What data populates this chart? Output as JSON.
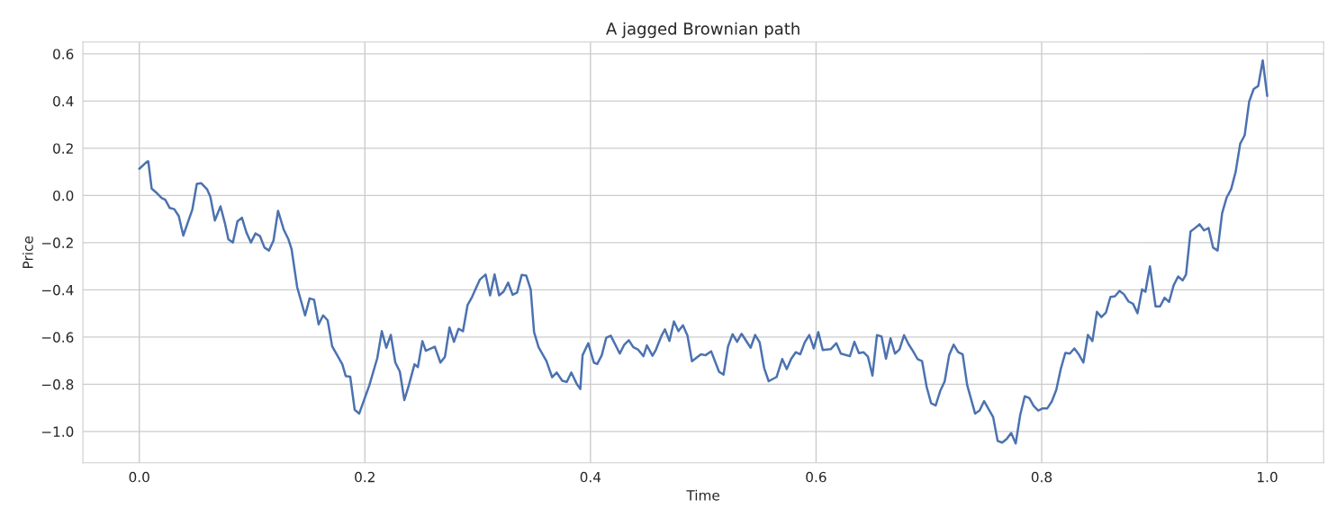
{
  "chart_data": {
    "type": "line",
    "title": "A jagged Brownian path",
    "xlabel": "Time",
    "ylabel": "Price",
    "xlim": [
      -0.05,
      1.05
    ],
    "ylim": [
      -1.133,
      0.65
    ],
    "xticks": [
      {
        "value": 0,
        "label": "0.0"
      },
      {
        "value": 0.2,
        "label": "0.2"
      },
      {
        "value": 0.4,
        "label": "0.4"
      },
      {
        "value": 0.6,
        "label": "0.6"
      },
      {
        "value": 0.8,
        "label": "0.8"
      },
      {
        "value": 1,
        "label": "1.0"
      }
    ],
    "yticks": [
      {
        "value": -1,
        "label": "−1.0"
      },
      {
        "value": -0.8,
        "label": "−0.8"
      },
      {
        "value": -0.6,
        "label": "−0.6"
      },
      {
        "value": -0.4,
        "label": "−0.4"
      },
      {
        "value": -0.2,
        "label": "−0.2"
      },
      {
        "value": 0,
        "label": "0.0"
      },
      {
        "value": 0.2,
        "label": "0.2"
      },
      {
        "value": 0.4,
        "label": "0.4"
      },
      {
        "value": 0.6,
        "label": "0.6"
      }
    ],
    "grid": true,
    "marker": "none",
    "line_style": "solid",
    "series": [
      {
        "color": "#4c72b0",
        "x": [
          0,
          0.007,
          0.008,
          0.011,
          0.016,
          0.02,
          0.023,
          0.027,
          0.031,
          0.035,
          0.039,
          0.047,
          0.051,
          0.055,
          0.06,
          0.063,
          0.067,
          0.072,
          0.076,
          0.079,
          0.083,
          0.087,
          0.091,
          0.095,
          0.099,
          0.103,
          0.107,
          0.111,
          0.115,
          0.119,
          0.123,
          0.128,
          0.132,
          0.135,
          0.14,
          0.147,
          0.151,
          0.155,
          0.159,
          0.163,
          0.167,
          0.171,
          0.18,
          0.183,
          0.187,
          0.191,
          0.195,
          0.204,
          0.211,
          0.215,
          0.219,
          0.223,
          0.227,
          0.231,
          0.235,
          0.239,
          0.244,
          0.247,
          0.251,
          0.254,
          0.262,
          0.267,
          0.271,
          0.275,
          0.279,
          0.283,
          0.287,
          0.291,
          0.295,
          0.302,
          0.307,
          0.311,
          0.315,
          0.319,
          0.323,
          0.327,
          0.331,
          0.335,
          0.339,
          0.343,
          0.347,
          0.35,
          0.354,
          0.361,
          0.366,
          0.37,
          0.375,
          0.379,
          0.383,
          0.388,
          0.391,
          0.393,
          0.398,
          0.403,
          0.406,
          0.41,
          0.414,
          0.418,
          0.426,
          0.43,
          0.434,
          0.438,
          0.442,
          0.447,
          0.45,
          0.455,
          0.458,
          0.463,
          0.466,
          0.47,
          0.474,
          0.478,
          0.482,
          0.486,
          0.49,
          0.498,
          0.502,
          0.507,
          0.514,
          0.518,
          0.522,
          0.526,
          0.53,
          0.534,
          0.542,
          0.546,
          0.55,
          0.554,
          0.558,
          0.565,
          0.57,
          0.574,
          0.578,
          0.582,
          0.586,
          0.59,
          0.594,
          0.598,
          0.602,
          0.606,
          0.613,
          0.618,
          0.622,
          0.63,
          0.634,
          0.638,
          0.642,
          0.646,
          0.65,
          0.654,
          0.658,
          0.662,
          0.666,
          0.67,
          0.674,
          0.678,
          0.682,
          0.686,
          0.69,
          0.694,
          0.698,
          0.702,
          0.706,
          0.71,
          0.714,
          0.718,
          0.722,
          0.726,
          0.73,
          0.734,
          0.741,
          0.745,
          0.749,
          0.757,
          0.761,
          0.765,
          0.769,
          0.773,
          0.777,
          0.781,
          0.785,
          0.789,
          0.793,
          0.797,
          0.801,
          0.805,
          0.809,
          0.813,
          0.817,
          0.821,
          0.825,
          0.829,
          0.833,
          0.837,
          0.841,
          0.845,
          0.849,
          0.853,
          0.857,
          0.861,
          0.865,
          0.869,
          0.873,
          0.877,
          0.881,
          0.885,
          0.889,
          0.892,
          0.896,
          0.901,
          0.905,
          0.909,
          0.913,
          0.917,
          0.921,
          0.925,
          0.928,
          0.932,
          0.936,
          0.94,
          0.944,
          0.948,
          0.952,
          0.956,
          0.96,
          0.964,
          0.968,
          0.972,
          0.976,
          0.98,
          0.984,
          0.988,
          0.992,
          0.996,
          1
        ],
        "values": [
          0.113,
          0.144,
          0.144,
          0.029,
          0.008,
          -0.011,
          -0.018,
          -0.053,
          -0.058,
          -0.087,
          -0.17,
          -0.06,
          0.049,
          0.052,
          0.027,
          -0.005,
          -0.106,
          -0.046,
          -0.119,
          -0.186,
          -0.199,
          -0.11,
          -0.094,
          -0.157,
          -0.199,
          -0.161,
          -0.172,
          -0.221,
          -0.233,
          -0.191,
          -0.065,
          -0.144,
          -0.183,
          -0.227,
          -0.389,
          -0.508,
          -0.436,
          -0.442,
          -0.546,
          -0.508,
          -0.529,
          -0.639,
          -0.715,
          -0.765,
          -0.768,
          -0.908,
          -0.924,
          -0.804,
          -0.689,
          -0.575,
          -0.645,
          -0.591,
          -0.708,
          -0.746,
          -0.867,
          -0.804,
          -0.715,
          -0.727,
          -0.617,
          -0.658,
          -0.641,
          -0.708,
          -0.683,
          -0.559,
          -0.62,
          -0.565,
          -0.575,
          -0.465,
          -0.43,
          -0.356,
          -0.335,
          -0.423,
          -0.335,
          -0.423,
          -0.407,
          -0.369,
          -0.421,
          -0.411,
          -0.337,
          -0.339,
          -0.398,
          -0.579,
          -0.643,
          -0.702,
          -0.77,
          -0.75,
          -0.785,
          -0.79,
          -0.75,
          -0.8,
          -0.82,
          -0.677,
          -0.626,
          -0.708,
          -0.714,
          -0.677,
          -0.603,
          -0.594,
          -0.67,
          -0.632,
          -0.613,
          -0.643,
          -0.652,
          -0.681,
          -0.635,
          -0.679,
          -0.654,
          -0.594,
          -0.567,
          -0.616,
          -0.534,
          -0.575,
          -0.55,
          -0.594,
          -0.702,
          -0.673,
          -0.677,
          -0.66,
          -0.747,
          -0.759,
          -0.639,
          -0.588,
          -0.62,
          -0.586,
          -0.645,
          -0.591,
          -0.622,
          -0.731,
          -0.787,
          -0.769,
          -0.693,
          -0.736,
          -0.692,
          -0.664,
          -0.673,
          -0.622,
          -0.591,
          -0.648,
          -0.579,
          -0.655,
          -0.651,
          -0.626,
          -0.67,
          -0.681,
          -0.62,
          -0.668,
          -0.664,
          -0.683,
          -0.763,
          -0.592,
          -0.597,
          -0.692,
          -0.605,
          -0.67,
          -0.652,
          -0.592,
          -0.63,
          -0.66,
          -0.693,
          -0.702,
          -0.81,
          -0.88,
          -0.89,
          -0.829,
          -0.788,
          -0.677,
          -0.632,
          -0.664,
          -0.673,
          -0.804,
          -0.924,
          -0.911,
          -0.871,
          -0.939,
          -1.04,
          -1.047,
          -1.032,
          -1.006,
          -1.051,
          -0.93,
          -0.851,
          -0.858,
          -0.892,
          -0.911,
          -0.902,
          -0.902,
          -0.873,
          -0.823,
          -0.734,
          -0.667,
          -0.67,
          -0.648,
          -0.674,
          -0.708,
          -0.591,
          -0.617,
          -0.493,
          -0.515,
          -0.496,
          -0.43,
          -0.427,
          -0.404,
          -0.419,
          -0.449,
          -0.459,
          -0.499,
          -0.398,
          -0.408,
          -0.3,
          -0.47,
          -0.47,
          -0.433,
          -0.451,
          -0.381,
          -0.343,
          -0.36,
          -0.335,
          -0.153,
          -0.138,
          -0.122,
          -0.148,
          -0.138,
          -0.221,
          -0.233,
          -0.075,
          -0.009,
          0.027,
          0.1,
          0.219,
          0.255,
          0.398,
          0.451,
          0.464,
          0.572,
          0.422
        ]
      }
    ]
  }
}
